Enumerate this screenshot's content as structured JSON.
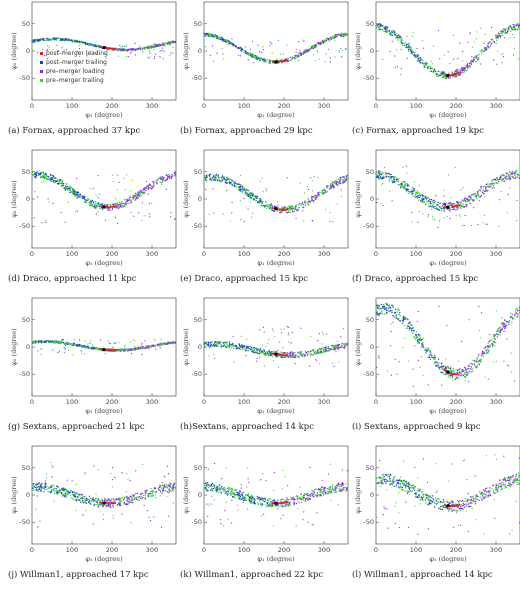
{
  "figure": {
    "ylabel": "φ₂ (degree)",
    "xlabel": "φ₁ (degree)",
    "colors": {
      "post_leading": "#d62728",
      "post_trailing": "#1f3fbf",
      "pre_leading": "#8a2be2",
      "pre_trailing": "#3ccf3c"
    },
    "legend": [
      {
        "label": "post–merger leading",
        "color": "#d62728"
      },
      {
        "label": "post–merger trailing",
        "color": "#1f3fbf"
      },
      {
        "label": "pre–merger loading",
        "color": "#8a2be2"
      },
      {
        "label": "pre–merger trailing",
        "color": "#3ccf3c"
      }
    ],
    "panels": [
      {
        "caption": "(a) Fornax, approached 37 kpc"
      },
      {
        "caption": "(b) Fornax, approached 29 kpc"
      },
      {
        "caption": "(c) Fornax, approached 19 kpc"
      },
      {
        "caption": "(d) Draco, approached 11 kpc"
      },
      {
        "caption": "(e) Draco, approached 15 kpc"
      },
      {
        "caption": "(f)  Draco, approached 15 kpc"
      },
      {
        "caption": "(g) Sextans, approached 21 kpc"
      },
      {
        "caption": "(h)Sextans, approached 14 kpc"
      },
      {
        "caption": "(i)  Sextans, approached 9 kpc"
      },
      {
        "caption": "(j)  Willman1, approached 17 kpc"
      },
      {
        "caption": "(k)  Willman1, approached 22 kpc"
      },
      {
        "caption": "(l)  Willman1, approached 14 kpc"
      }
    ]
  },
  "chart_data": {
    "type": "scatter",
    "xlabel": "φ₁ (degree)",
    "ylabel": "φ₂ (degree)",
    "xlim": [
      0,
      360
    ],
    "ylim": [
      -90,
      90
    ],
    "xticks": [
      0,
      100,
      200,
      300
    ],
    "yticks": [
      -50,
      0,
      50
    ],
    "series": [
      {
        "name": "post–merger leading"
      },
      {
        "name": "post–merger trailing"
      },
      {
        "name": "pre–merger loading"
      },
      {
        "name": "pre–merger trailing"
      }
    ]
  }
}
